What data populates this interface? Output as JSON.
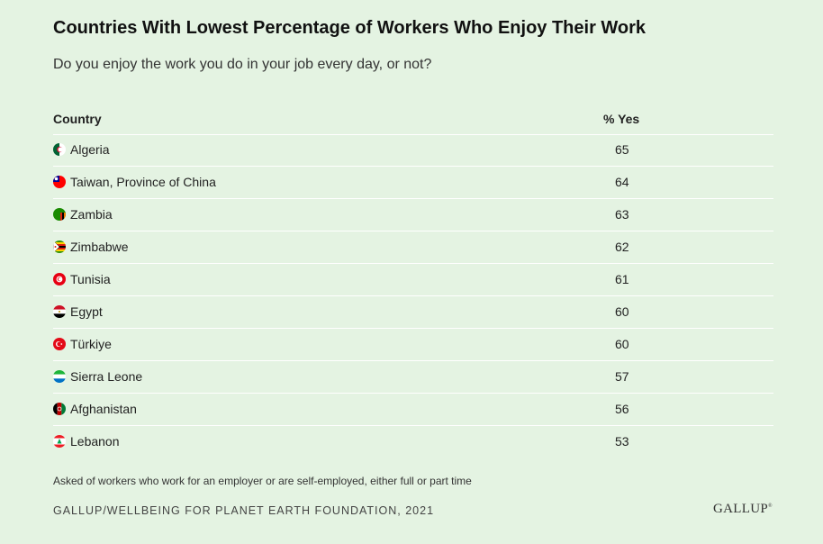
{
  "chart_data": {
    "type": "table",
    "title": "Countries With Lowest Percentage of Workers Who Enjoy Their Work",
    "subtitle": "Do you enjoy the work you do in your job every day, or not?",
    "columns": [
      "Country",
      "% Yes"
    ],
    "rows": [
      {
        "country": "Algeria",
        "value": 65,
        "flag": "algeria-flag-icon"
      },
      {
        "country": "Taiwan, Province of China",
        "value": 64,
        "flag": "taiwan-flag-icon"
      },
      {
        "country": "Zambia",
        "value": 63,
        "flag": "zambia-flag-icon"
      },
      {
        "country": "Zimbabwe",
        "value": 62,
        "flag": "zimbabwe-flag-icon"
      },
      {
        "country": "Tunisia",
        "value": 61,
        "flag": "tunisia-flag-icon"
      },
      {
        "country": "Egypt",
        "value": 60,
        "flag": "egypt-flag-icon"
      },
      {
        "country": "Türkiye",
        "value": 60,
        "flag": "turkiye-flag-icon"
      },
      {
        "country": "Sierra Leone",
        "value": 57,
        "flag": "sierra-leone-flag-icon"
      },
      {
        "country": "Afghanistan",
        "value": 56,
        "flag": "afghanistan-flag-icon"
      },
      {
        "country": "Lebanon",
        "value": 53,
        "flag": "lebanon-flag-icon"
      }
    ],
    "note": "Asked of workers who work for an employer or are self-employed, either full or part time",
    "source": "GALLUP/WELLBEING FOR PLANET EARTH FOUNDATION, 2021"
  },
  "logo": "GALLUP",
  "colors": {
    "background": "#e4f3e2",
    "divider": "#ffffff"
  }
}
